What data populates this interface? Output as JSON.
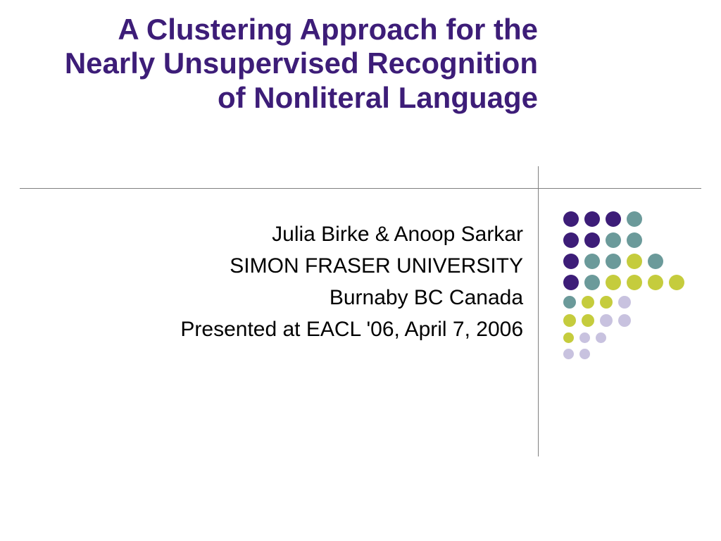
{
  "title": "A Clustering Approach for the Nearly Unsupervised Recognition of Nonliteral Language",
  "title_color": "#3d1d78",
  "title_fontsize": 42,
  "body": {
    "lines": [
      "Julia Birke & Anoop Sarkar",
      "SIMON FRASER UNIVERSITY",
      "Burnaby BC  Canada",
      "Presented at EACL '06, April 7, 2006"
    ],
    "color": "#000000",
    "fontsize": 30
  },
  "divider_color": "#808080",
  "background_color": "#ffffff",
  "decoration": {
    "colors": {
      "purple": "#3d1d78",
      "teal": "#6b9a9a",
      "olive": "#c5cc3d",
      "lightpurple": "#c8c2df"
    },
    "dot_size_large": 22,
    "dot_size_medium": 18,
    "dot_size_small": 15,
    "row_gap": 8,
    "rows": [
      {
        "size": 22,
        "dots": [
          "purple",
          "purple",
          "purple",
          "teal"
        ]
      },
      {
        "size": 22,
        "dots": [
          "purple",
          "purple",
          "teal",
          "teal"
        ]
      },
      {
        "size": 22,
        "dots": [
          "purple",
          "teal",
          "teal",
          "olive",
          "teal"
        ]
      },
      {
        "size": 22,
        "dots": [
          "purple",
          "teal",
          "olive",
          "olive",
          "olive",
          "olive"
        ]
      },
      {
        "size": 18,
        "dots": [
          "teal",
          "olive",
          "olive",
          "lightpurple"
        ]
      },
      {
        "size": 18,
        "dots": [
          "olive",
          "olive",
          "lightpurple",
          "lightpurple"
        ]
      },
      {
        "size": 15,
        "dots": [
          "olive",
          "lightpurple",
          "lightpurple"
        ]
      },
      {
        "size": 15,
        "dots": [
          "lightpurple",
          "lightpurple"
        ]
      }
    ]
  }
}
